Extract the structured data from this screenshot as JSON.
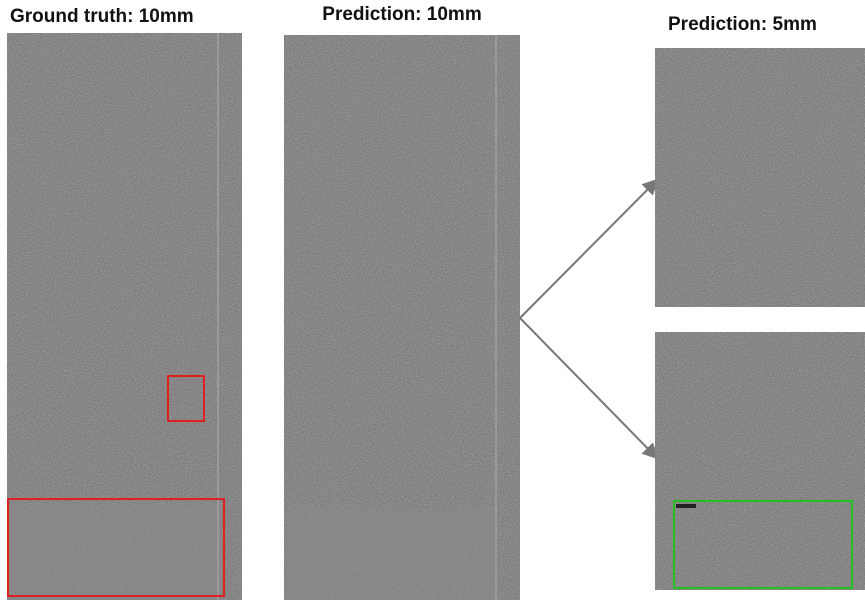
{
  "panels": [
    {
      "title": "Ground truth: 10mm"
    },
    {
      "title": "Prediction: 10mm"
    },
    {
      "title": "Prediction: 5mm"
    }
  ]
}
